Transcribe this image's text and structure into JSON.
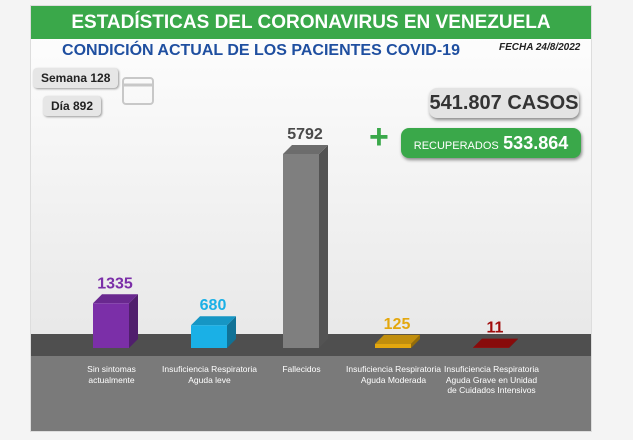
{
  "header": {
    "title": "ESTADÍSTICAS DEL CORONAVIRUS EN VENEZUELA",
    "subtitle": "CONDICIÓN ACTUAL DE LOS PACIENTES COVID-19",
    "date": "FECHA 24/8/2022",
    "week": "Semana 128",
    "day": "Día 892",
    "cases": "541.807 CASOS",
    "recovered_label": "RECUPERADOS",
    "recovered_value": "533.864"
  },
  "chart_data": {
    "type": "bar",
    "categories": [
      "Sin sintomas actualmente",
      "Insuficiencia Respiratoria Aguda leve",
      "Fallecidos",
      "Insuficiencia Respiratoria Aguda Moderada",
      "Insuficiencia Respiratoria Aguda Grave en Unidad de Cuidados Intensivos"
    ],
    "values": [
      1335,
      680,
      5792,
      125,
      11
    ],
    "colors": [
      "#7b2fa8",
      "#1ab0e6",
      "#7f7f7f",
      "#e3a70e",
      "#a00d0d"
    ],
    "label_colors": [
      "#7b2fa8",
      "#1ab0e6",
      "#4a4a4a",
      "#e3a70e",
      "#a00d0d"
    ]
  }
}
